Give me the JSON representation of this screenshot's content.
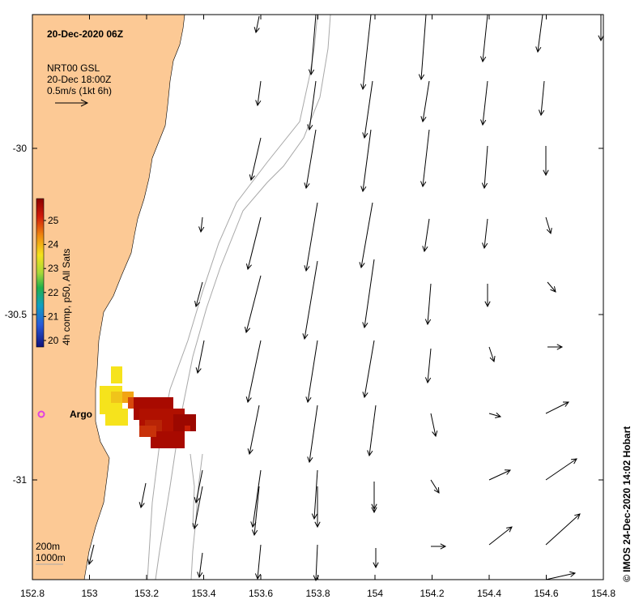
{
  "title": "20-Dec-2020 06Z",
  "current_legend": {
    "line1": "NRT00 GSL",
    "line2": "20-Dec 18:00Z",
    "line3": "0.5m/s (1kt 6h)"
  },
  "colorbar": {
    "label": "4h comp, p50, All Sats",
    "ticks": [
      "25",
      "24",
      "23",
      "22",
      "21",
      "20"
    ]
  },
  "argo_label": "Argo",
  "depth_legend": {
    "line1": "200m",
    "line2": "1000m"
  },
  "credit": "© IMOS 24-Dec-2020 14:02 Hobart",
  "x_axis_ticks": [
    "152.8",
    "153",
    "153.2",
    "153.4",
    "153.6",
    "153.8",
    "154",
    "154.2",
    "154.4",
    "154.6",
    "154.8"
  ],
  "y_axis_ticks": [
    "-30",
    "-30.5",
    "-31"
  ],
  "colors": {
    "land": "#fcc995",
    "isobath": "#a8a8a8",
    "argo": "#e040e0"
  }
}
